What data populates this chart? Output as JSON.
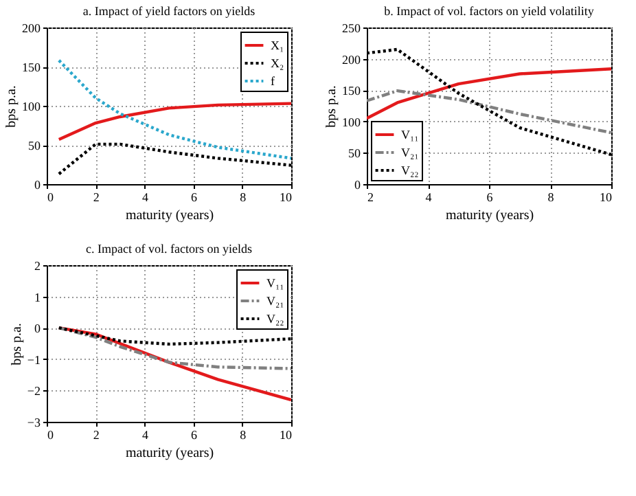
{
  "chart_data": [
    {
      "type": "line",
      "title": "a. Impact of yield factors on yields",
      "xlabel": "maturity (years)",
      "ylabel": "bps p.a.",
      "xlim": [
        0,
        10
      ],
      "xticks": [
        0,
        2,
        4,
        6,
        8,
        10
      ],
      "ylim": [
        0,
        200
      ],
      "yticks": [
        0,
        50,
        100,
        150,
        200
      ],
      "grid": true,
      "legend": "top right",
      "x": [
        0.5,
        2,
        3,
        5,
        7,
        10
      ],
      "series": [
        {
          "name": "X₁",
          "color": "#e31a1c",
          "line_style": "solid",
          "values": [
            57,
            78,
            86,
            97,
            101,
            103
          ]
        },
        {
          "name": "X₂",
          "color": "#000000",
          "line_style": "dotted",
          "values": [
            13,
            51,
            51,
            41,
            33,
            24
          ]
        },
        {
          "name": "f",
          "color": "#2aa7cc",
          "line_style": "dotted",
          "values": [
            158,
            110,
            90,
            63,
            47,
            33
          ]
        }
      ]
    },
    {
      "type": "line",
      "title": "b. Impact of vol. factors on yield volatility",
      "xlabel": "maturity (years)",
      "ylabel": "bps p.a.",
      "xlim": [
        2,
        10
      ],
      "xticks": [
        2,
        4,
        6,
        8,
        10
      ],
      "ylim": [
        0,
        250
      ],
      "yticks": [
        0,
        50,
        100,
        150,
        200,
        250
      ],
      "grid": true,
      "legend": "bottom left",
      "x": [
        2,
        3,
        5,
        7,
        10
      ],
      "series": [
        {
          "name": "V₁₁",
          "color": "#e31a1c",
          "line_style": "solid",
          "values": [
            105,
            130,
            160,
            176,
            184
          ]
        },
        {
          "name": "V₂₁",
          "color": "#808080",
          "line_style": "dashed",
          "values": [
            133,
            149,
            135,
            112,
            82
          ]
        },
        {
          "name": "V₂₂",
          "color": "#000000",
          "line_style": "dotted",
          "values": [
            209,
            215,
            145,
            90,
            47
          ]
        }
      ]
    },
    {
      "type": "line",
      "title": "c. Impact of vol. factors on yields",
      "xlabel": "maturity (years)",
      "ylabel": "bps p.a.",
      "xlim": [
        0,
        10
      ],
      "xticks": [
        0,
        2,
        4,
        6,
        8,
        10
      ],
      "ylim": [
        -3,
        2
      ],
      "yticks": [
        -3,
        -2,
        -1,
        0,
        1,
        2
      ],
      "grid": true,
      "legend": "top right",
      "x": [
        0.5,
        2,
        3,
        5,
        7,
        10
      ],
      "series": [
        {
          "name": "V₁₁",
          "color": "#e31a1c",
          "line_style": "solid",
          "values": [
            0,
            -0.2,
            -0.5,
            -1.1,
            -1.65,
            -2.3
          ]
        },
        {
          "name": "V₂₁",
          "color": "#808080",
          "line_style": "dashed",
          "values": [
            0,
            -0.3,
            -0.6,
            -1.1,
            -1.25,
            -1.3
          ]
        },
        {
          "name": "V₂₂",
          "color": "#000000",
          "line_style": "dotted",
          "values": [
            0,
            -0.25,
            -0.42,
            -0.52,
            -0.47,
            -0.35
          ]
        }
      ]
    }
  ]
}
